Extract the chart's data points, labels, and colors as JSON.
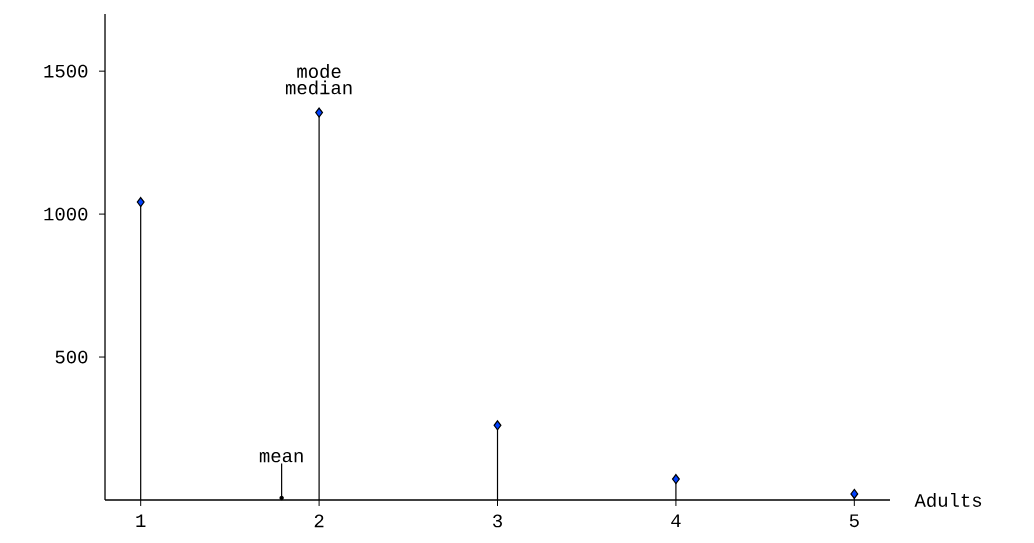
{
  "chart_data": {
    "type": "lollipop",
    "x": [
      1,
      2,
      3,
      4,
      5
    ],
    "values": [
      1042,
      1355,
      261,
      73,
      21
    ],
    "color": "#0040ff",
    "marker": "diamond",
    "xlabel": "Adults",
    "xlim": [
      0.8,
      5.2
    ],
    "xticks": [
      1,
      2,
      3,
      4,
      5
    ],
    "ylim": [
      0,
      1700
    ],
    "yticks": [
      500,
      1000,
      1500
    ],
    "annotations": [
      "mode",
      {
        "text": "median",
        "x": 2,
        "y": 1355
      },
      {
        "text": "mean",
        "x": 1.79,
        "y": 0
      }
    ]
  }
}
